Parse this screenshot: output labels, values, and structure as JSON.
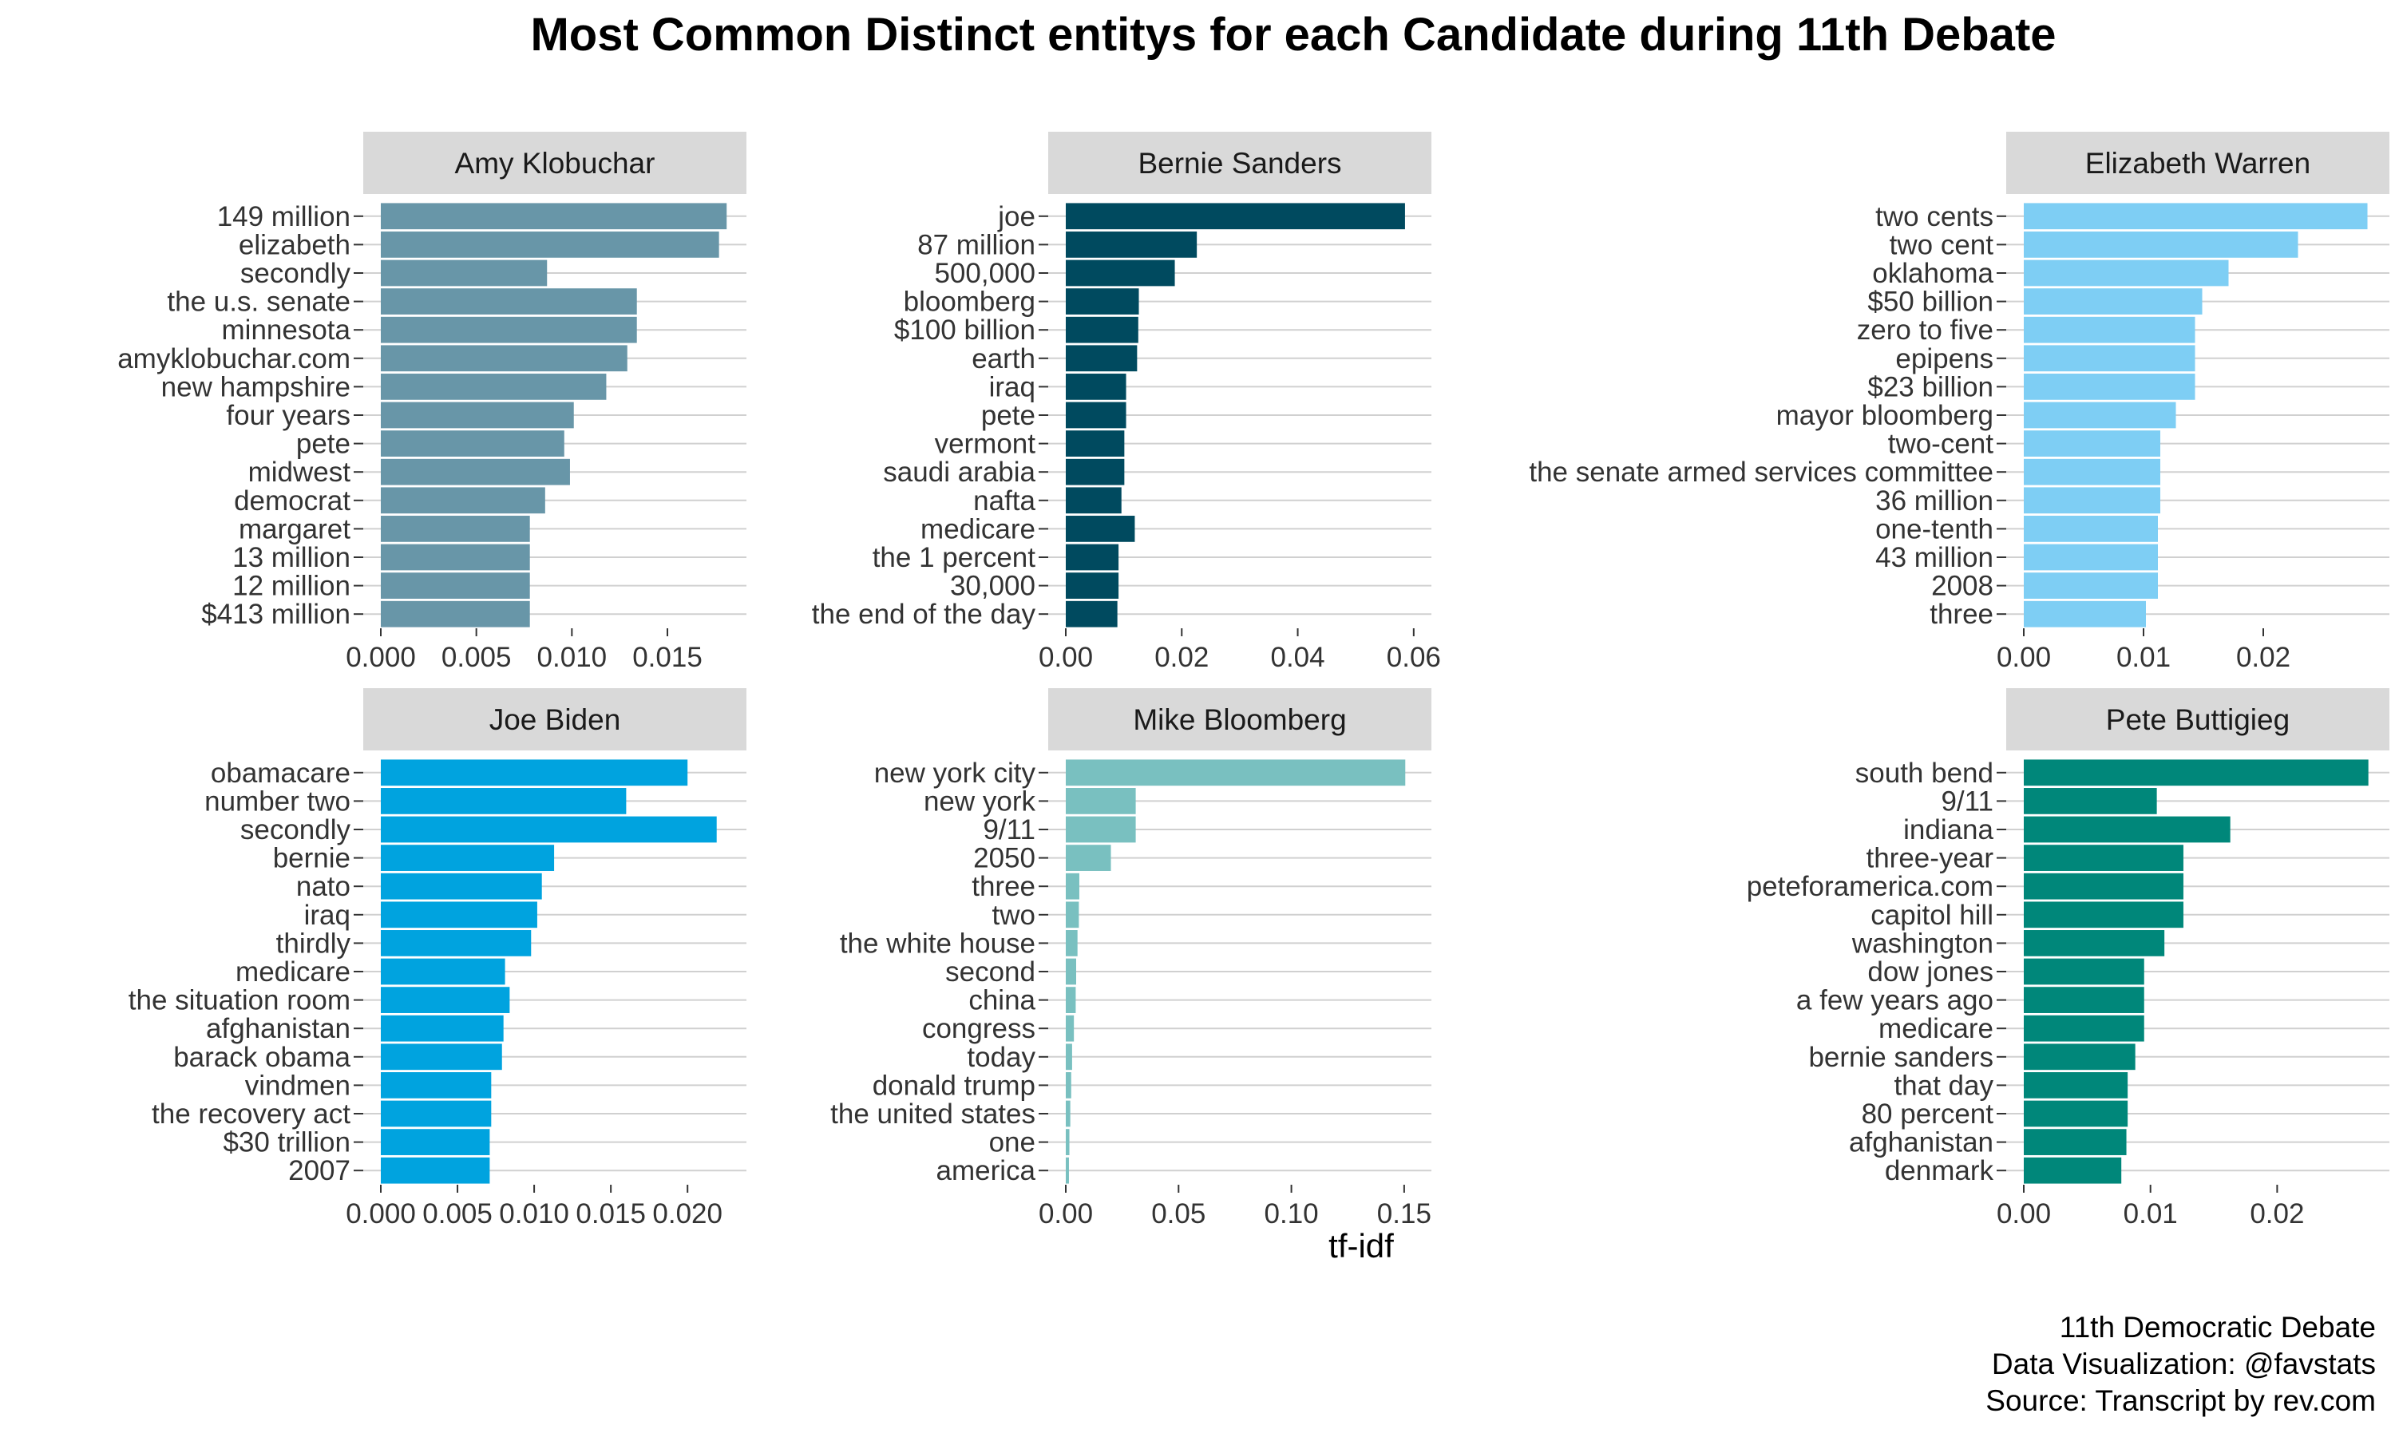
{
  "title": "Most Common Distinct entitys for each Candidate during 11th Debate",
  "caption": [
    "11th Democratic Debate",
    "Data Visualization: @favstats",
    "Source: Transcript by rev.com"
  ],
  "chart_data": {
    "type": "bar",
    "orientation": "horizontal",
    "xlabel": "tf-idf",
    "panels": [
      {
        "name": "Amy Klobuchar",
        "color": "#6896a8",
        "xlim": [
          0,
          0.0183
        ],
        "ticks": [
          "0.000",
          "0.005",
          "0.010",
          "0.015"
        ],
        "tick_values": [
          0,
          0.005,
          0.01,
          0.015
        ],
        "categories": [
          "149 million",
          "elizabeth",
          "secondly",
          "the u.s. senate",
          "minnesota",
          "amyklobuchar.com",
          "new hampshire",
          "four years",
          "pete",
          "midwest",
          "democrat",
          "margaret",
          "13 million",
          "12 million",
          "$413 million"
        ],
        "values": [
          0.0181,
          0.0177,
          0.0087,
          0.0134,
          0.0134,
          0.0129,
          0.0118,
          0.0101,
          0.0096,
          0.0099,
          0.0086,
          0.0078,
          0.0078,
          0.0078,
          0.0078
        ]
      },
      {
        "name": "Bernie Sanders",
        "color": "#004a5f",
        "xlim": [
          0,
          0.0603
        ],
        "ticks": [
          "0.00",
          "0.02",
          "0.04",
          "0.06"
        ],
        "tick_values": [
          0,
          0.02,
          0.04,
          0.06
        ],
        "categories": [
          "joe",
          "87 million",
          "500,000",
          "bloomberg",
          "$100 billion",
          "earth",
          "iraq",
          "pete",
          "vermont",
          "saudi arabia",
          "nafta",
          "medicare",
          "the 1 percent",
          "30,000",
          "the end of the day"
        ],
        "values": [
          0.0585,
          0.0226,
          0.0188,
          0.0126,
          0.0125,
          0.0123,
          0.0104,
          0.0104,
          0.0101,
          0.0101,
          0.0096,
          0.0119,
          0.0091,
          0.0091,
          0.0089
        ]
      },
      {
        "name": "Elizabeth Warren",
        "color": "#7ecef4",
        "xlim": [
          0,
          0.0292
        ],
        "ticks": [
          "0.00",
          "0.01",
          "0.02"
        ],
        "tick_values": [
          0,
          0.01,
          0.02
        ],
        "categories": [
          "two cents",
          "two cent",
          "oklahoma",
          "$50 billion",
          "zero to five",
          "epipens",
          "$23 billion",
          "mayor bloomberg",
          "two-cent",
          "the senate armed services committee",
          "36 million",
          "one-tenth",
          "43 million",
          "2008",
          "three"
        ],
        "values": [
          0.0287,
          0.0229,
          0.0171,
          0.0149,
          0.0143,
          0.0143,
          0.0143,
          0.0127,
          0.0114,
          0.0114,
          0.0114,
          0.0112,
          0.0112,
          0.0112,
          0.0102
        ]
      },
      {
        "name": "Joe Biden",
        "color": "#00a3df",
        "xlim": [
          0,
          0.0228
        ],
        "ticks": [
          "0.000",
          "0.005",
          "0.010",
          "0.015",
          "0.020"
        ],
        "tick_values": [
          0,
          0.005,
          0.01,
          0.015,
          0.02
        ],
        "categories": [
          "obamacare",
          "number two",
          "secondly",
          "bernie",
          "nato",
          "iraq",
          "thirdly",
          "medicare",
          "the situation room",
          "afghanistan",
          "barack obama",
          "vindmen",
          "the recovery act",
          "$30 trillion",
          "2007"
        ],
        "values": [
          0.02,
          0.016,
          0.0219,
          0.0113,
          0.0105,
          0.0102,
          0.0098,
          0.0081,
          0.0084,
          0.008,
          0.0079,
          0.0072,
          0.0072,
          0.0071,
          0.0071
        ]
      },
      {
        "name": "Mike Bloomberg",
        "color": "#79c0c0",
        "xlim": [
          0,
          0.155
        ],
        "ticks": [
          "0.00",
          "0.05",
          "0.10",
          "0.15"
        ],
        "tick_values": [
          0,
          0.05,
          0.1,
          0.15
        ],
        "categories": [
          "new york city",
          "new york",
          "9/11",
          "2050",
          "three",
          "two",
          "the white house",
          "second",
          "china",
          "congress",
          "today",
          "donald trump",
          "the united states",
          "one",
          "america"
        ],
        "values": [
          0.1505,
          0.031,
          0.031,
          0.02,
          0.006,
          0.0058,
          0.0052,
          0.0046,
          0.0044,
          0.0036,
          0.0028,
          0.0024,
          0.002,
          0.0016,
          0.0014
        ]
      },
      {
        "name": "Pete Buttigieg",
        "color": "#00877a",
        "xlim": [
          0,
          0.0276
        ],
        "ticks": [
          "0.00",
          "0.01",
          "0.02"
        ],
        "tick_values": [
          0,
          0.01,
          0.02
        ],
        "categories": [
          "south bend",
          "9/11",
          "indiana",
          "three-year",
          "peteforamerica.com",
          "capitol hill",
          "washington",
          "dow jones",
          "a few years ago",
          "medicare",
          "bernie sanders",
          "that day",
          "80 percent",
          "afghanistan",
          "denmark"
        ],
        "values": [
          0.0272,
          0.0105,
          0.0163,
          0.0126,
          0.0126,
          0.0126,
          0.0111,
          0.0095,
          0.0095,
          0.0095,
          0.0088,
          0.0082,
          0.0082,
          0.0081,
          0.0077
        ]
      }
    ]
  }
}
